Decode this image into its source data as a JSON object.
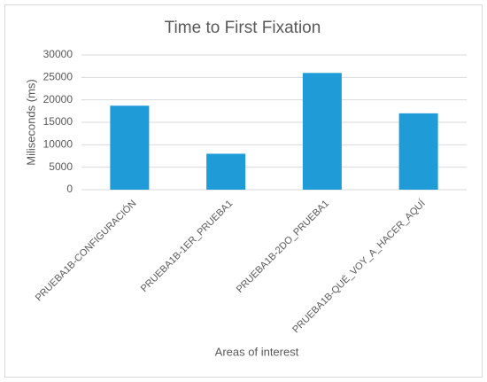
{
  "chart_data": {
    "type": "bar",
    "title": "Time to First Fixation",
    "x_label": "Areas of interest",
    "y_label": "Miliseconds (ms)",
    "categories": [
      "PRUEBA1B-CONFIGURACIÓN",
      "PRUEBA1B-1ER_PRUEBA1",
      "PRUEBA1B-2DO_PRUEBA1",
      "PRUEBA1B-QUÉ_VOY_A_HACER_AQUÍ"
    ],
    "values": [
      18700,
      8000,
      26000,
      17000
    ],
    "color": "#1f9bd8",
    "ylim": [
      0,
      30000
    ],
    "yticks": [
      0,
      5000,
      10000,
      15000,
      20000,
      25000,
      30000
    ],
    "grid": true
  }
}
